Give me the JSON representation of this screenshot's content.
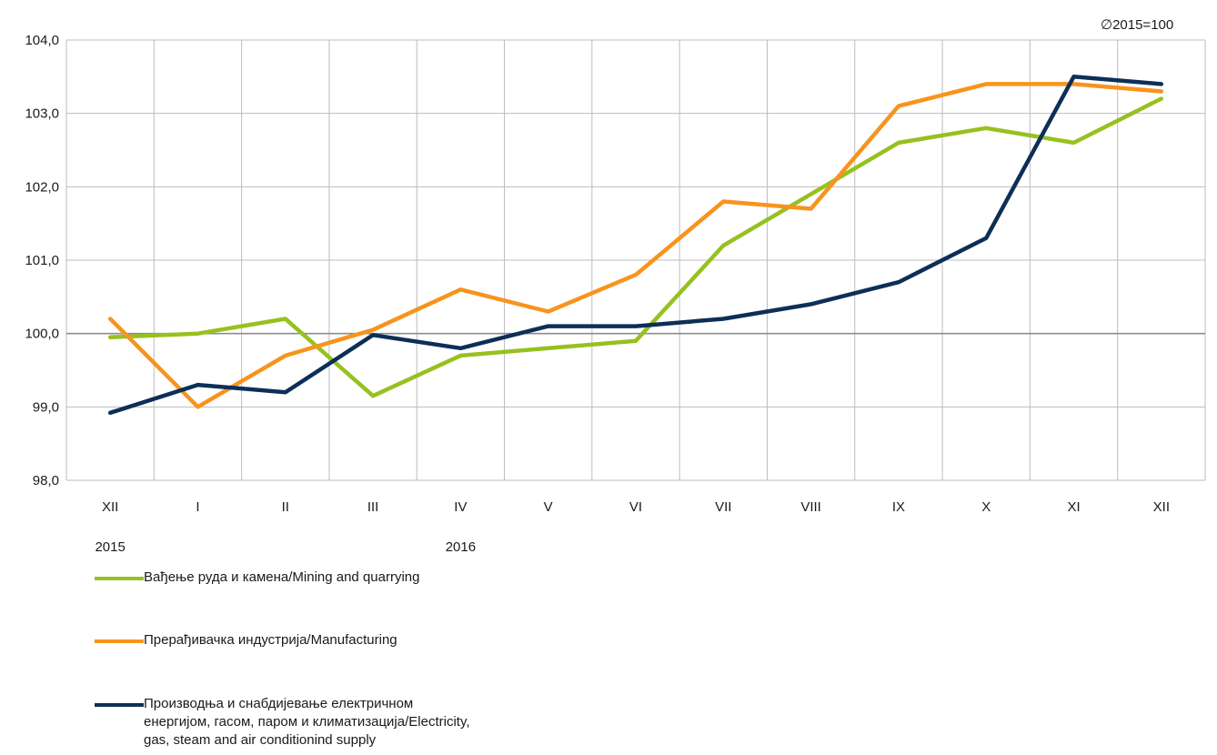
{
  "chart_data": {
    "type": "line",
    "unit_note": "∅2015=100",
    "ylim": [
      98.0,
      104.0
    ],
    "y_ticks": [
      "98,0",
      "99,0",
      "100,0",
      "101,0",
      "102,0",
      "103,0",
      "104,0"
    ],
    "categories": [
      "XII",
      "I",
      "II",
      "III",
      "IV",
      "V",
      "VI",
      "VII",
      "VIII",
      "IX",
      "X",
      "XI",
      "XII"
    ],
    "year_labels": [
      {
        "text": "2015",
        "category_index": 0
      },
      {
        "text": "2016",
        "category_index": 4
      }
    ],
    "reference_line": 100.0,
    "grid": true,
    "series": [
      {
        "name": "Вађење руда и камена/Mining and quarrying",
        "color": "#96c11f",
        "values": [
          99.95,
          100.0,
          100.2,
          99.15,
          99.7,
          99.8,
          99.9,
          101.2,
          101.9,
          102.6,
          102.8,
          102.6,
          103.2
        ]
      },
      {
        "name": "Прерађивачка индустрија/Manufacturing",
        "color": "#f7941d",
        "values": [
          100.2,
          99.0,
          99.7,
          100.05,
          100.6,
          100.3,
          100.8,
          101.8,
          101.7,
          103.1,
          103.4,
          103.4,
          103.3
        ]
      },
      {
        "name": "Производња и снабдијевање електричном енергијом, гасом, паром и климатизација/Electricity, gas, steam and air conditionind supply",
        "color": "#0d2f57",
        "values": [
          98.92,
          99.3,
          99.2,
          99.98,
          99.8,
          100.1,
          100.1,
          100.2,
          100.4,
          100.7,
          101.3,
          103.5,
          103.4
        ]
      }
    ]
  }
}
